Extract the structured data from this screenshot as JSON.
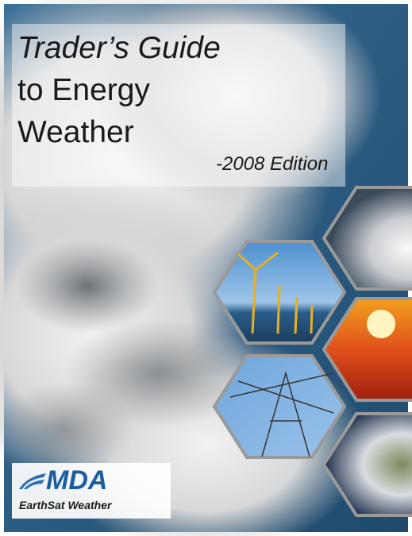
{
  "cover": {
    "title_lines": [
      "Trader’s Guide",
      "to Energy",
      "Weather"
    ],
    "edition": "-2008 Edition",
    "logo": {
      "name": "MDA",
      "tagline": "EarthSat Weather"
    }
  }
}
